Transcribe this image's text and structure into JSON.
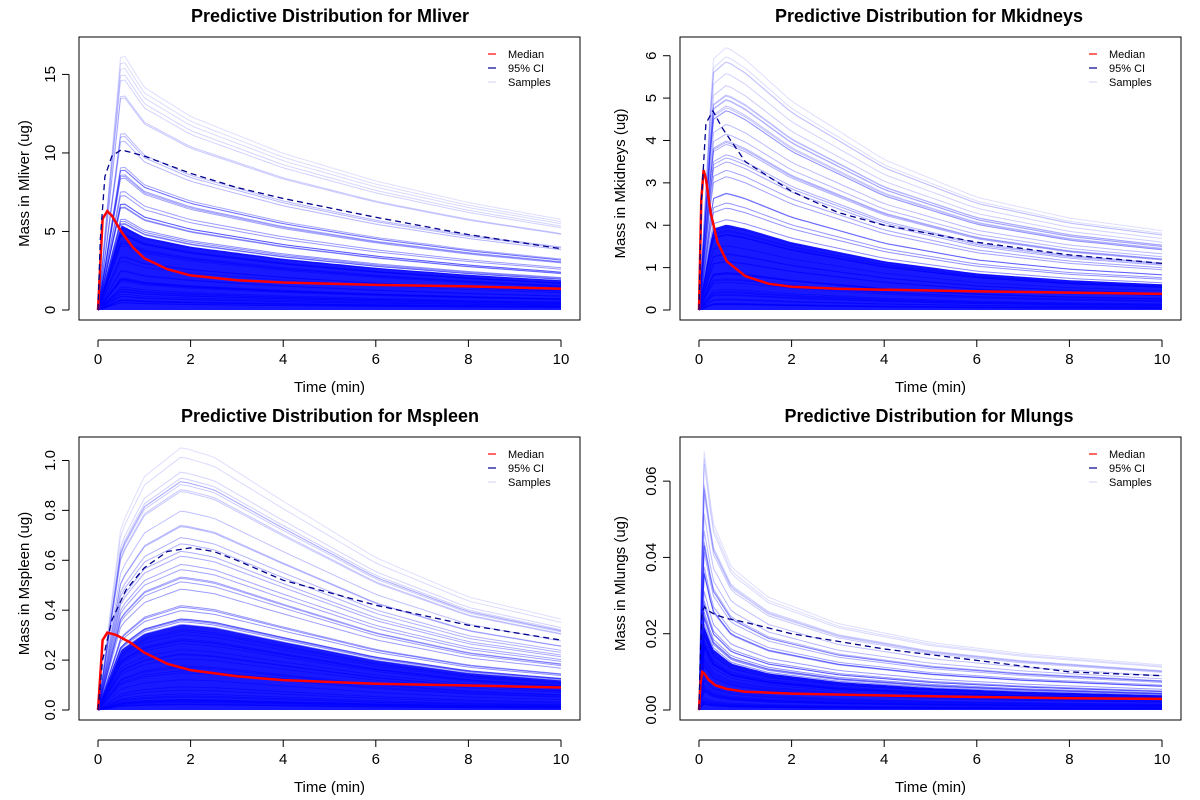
{
  "colors": {
    "median": "#ff0000",
    "ci": "#00008b",
    "samples": "#0000ff",
    "axis": "#000000",
    "background": "#ffffff"
  },
  "chart_data": [
    {
      "type": "line",
      "title": "Predictive Distribution for Mliver",
      "xlabel": "Time (min)",
      "ylabel": "Mass in Mliver (ug)",
      "xlim": [
        0,
        10
      ],
      "ylim": [
        0,
        17
      ],
      "xticks": [
        "0",
        "2",
        "4",
        "6",
        "8",
        "10"
      ],
      "yticks": [
        "0",
        "5",
        "10",
        "15"
      ],
      "legend": {
        "placement": "top-right",
        "entries": [
          "Median",
          "95% CI",
          "Samples"
        ]
      },
      "series": [
        {
          "name": "Median",
          "style": "solid",
          "x": [
            0,
            0.1,
            0.2,
            0.3,
            0.5,
            0.75,
            1,
            1.5,
            2,
            3,
            4,
            6,
            8,
            10
          ],
          "values": [
            0,
            5.8,
            6.3,
            6.0,
            5.0,
            4.0,
            3.3,
            2.6,
            2.2,
            1.9,
            1.75,
            1.6,
            1.5,
            1.35
          ]
        },
        {
          "name": "95% CI",
          "style": "dashed",
          "x": [
            0,
            0.05,
            0.15,
            0.3,
            0.5,
            1,
            2,
            3,
            4,
            6,
            8,
            10
          ],
          "values": [
            0,
            4.5,
            8.5,
            9.8,
            10.2,
            9.8,
            8.7,
            7.8,
            7.1,
            5.9,
            4.8,
            3.9
          ]
        }
      ],
      "samples_envelope": {
        "x": [
          0,
          0.5,
          1,
          2,
          4,
          6,
          8,
          10
        ],
        "max": [
          0,
          16.9,
          14.5,
          12.6,
          10.2,
          8.4,
          7.0,
          5.9
        ]
      }
    },
    {
      "type": "line",
      "title": "Predictive Distribution for Mkidneys",
      "xlabel": "Time (min)",
      "ylabel": "Mass in Mkidneys (ug)",
      "xlim": [
        0,
        10
      ],
      "ylim": [
        0,
        6.3
      ],
      "xticks": [
        "0",
        "2",
        "4",
        "6",
        "8",
        "10"
      ],
      "yticks": [
        "0",
        "1",
        "2",
        "3",
        "4",
        "5",
        "6"
      ],
      "legend": {
        "placement": "top-right",
        "entries": [
          "Median",
          "95% CI",
          "Samples"
        ]
      },
      "series": [
        {
          "name": "Median",
          "style": "solid",
          "x": [
            0,
            0.05,
            0.1,
            0.15,
            0.25,
            0.4,
            0.6,
            1,
            1.5,
            2,
            3,
            4,
            6,
            8,
            10
          ],
          "values": [
            0,
            2.6,
            3.3,
            3.1,
            2.3,
            1.6,
            1.15,
            0.8,
            0.62,
            0.55,
            0.5,
            0.48,
            0.44,
            0.41,
            0.38
          ]
        },
        {
          "name": "95% CI",
          "style": "dashed",
          "x": [
            0,
            0.05,
            0.15,
            0.3,
            0.5,
            1,
            2,
            3,
            4,
            6,
            8,
            10
          ],
          "values": [
            0,
            2.5,
            4.4,
            4.7,
            4.3,
            3.5,
            2.8,
            2.3,
            2.0,
            1.6,
            1.3,
            1.1
          ]
        }
      ],
      "samples_envelope": {
        "x": [
          0,
          0.3,
          0.6,
          1,
          2,
          4,
          6,
          8,
          10
        ],
        "max": [
          0,
          6.0,
          6.3,
          6.0,
          5.0,
          3.6,
          2.7,
          2.2,
          1.9
        ]
      }
    },
    {
      "type": "line",
      "title": "Predictive Distribution for Mspleen",
      "xlabel": "Time (min)",
      "ylabel": "Mass in Mspleen (ug)",
      "xlim": [
        0,
        10
      ],
      "ylim": [
        0,
        1.07
      ],
      "xticks": [
        "0",
        "2",
        "4",
        "6",
        "8",
        "10"
      ],
      "yticks": [
        "0.0",
        "0.2",
        "0.4",
        "0.6",
        "0.8",
        "1.0"
      ],
      "legend": {
        "placement": "top-right",
        "entries": [
          "Median",
          "95% CI",
          "Samples"
        ]
      },
      "series": [
        {
          "name": "Median",
          "style": "solid",
          "x": [
            0,
            0.1,
            0.2,
            0.4,
            0.7,
            1,
            1.5,
            2,
            3,
            4,
            6,
            8,
            10
          ],
          "values": [
            0,
            0.28,
            0.31,
            0.3,
            0.27,
            0.23,
            0.185,
            0.16,
            0.135,
            0.12,
            0.105,
            0.098,
            0.09
          ]
        },
        {
          "name": "95% CI",
          "style": "dashed",
          "x": [
            0,
            0.1,
            0.3,
            0.6,
            1,
            1.5,
            2,
            2.5,
            3,
            4,
            6,
            8,
            10
          ],
          "values": [
            0,
            0.2,
            0.36,
            0.48,
            0.57,
            0.635,
            0.65,
            0.635,
            0.6,
            0.52,
            0.42,
            0.34,
            0.28
          ]
        }
      ],
      "samples_envelope": {
        "x": [
          0,
          0.5,
          1,
          1.8,
          2.5,
          4,
          6,
          8,
          10
        ],
        "max": [
          0,
          0.75,
          0.95,
          1.07,
          1.03,
          0.85,
          0.62,
          0.46,
          0.37
        ]
      }
    },
    {
      "type": "line",
      "title": "Predictive Distribution for Mlungs",
      "xlabel": "Time (min)",
      "ylabel": "Mass in Mlungs (ug)",
      "xlim": [
        0,
        10
      ],
      "ylim": [
        0,
        0.07
      ],
      "xticks": [
        "0",
        "2",
        "4",
        "6",
        "8",
        "10"
      ],
      "yticks": [
        "0.00",
        "0.02",
        "0.04",
        "0.06"
      ],
      "legend": {
        "placement": "top-right",
        "entries": [
          "Median",
          "95% CI",
          "Samples"
        ]
      },
      "series": [
        {
          "name": "Median",
          "style": "solid",
          "x": [
            0,
            0.03,
            0.07,
            0.12,
            0.2,
            0.35,
            0.6,
            1,
            2,
            4,
            6,
            8,
            10
          ],
          "values": [
            0,
            0.007,
            0.01,
            0.0095,
            0.008,
            0.0065,
            0.0055,
            0.0048,
            0.0043,
            0.0038,
            0.0034,
            0.0031,
            0.0029
          ]
        },
        {
          "name": "95% CI",
          "style": "dashed",
          "x": [
            0,
            0.03,
            0.07,
            0.12,
            0.2,
            0.35,
            0.6,
            1,
            2,
            4,
            6,
            8,
            10
          ],
          "values": [
            0,
            0.015,
            0.026,
            0.027,
            0.026,
            0.025,
            0.024,
            0.023,
            0.02,
            0.016,
            0.013,
            0.01,
            0.009
          ]
        }
      ],
      "samples_envelope": {
        "x": [
          0,
          0.1,
          0.3,
          0.7,
          1.5,
          3,
          5,
          7,
          10
        ],
        "max": [
          0,
          0.07,
          0.05,
          0.038,
          0.03,
          0.023,
          0.018,
          0.015,
          0.012
        ]
      }
    }
  ]
}
